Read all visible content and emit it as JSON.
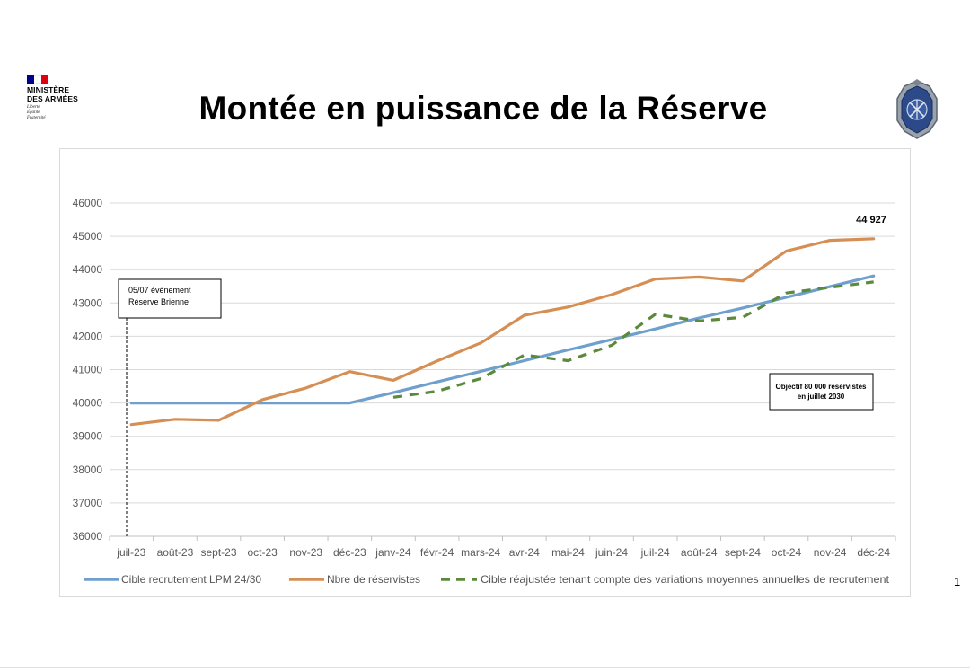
{
  "header": {
    "ministry_name_line1": "MINISTÈRE",
    "ministry_name_line2": "DES ARMÉES",
    "motto_line1": "Liberté",
    "motto_line2": "Égalité",
    "motto_line3": "Fraternité",
    "flag_colors": [
      "#000091",
      "#ffffff",
      "#e1000f"
    ],
    "title": "Montée en puissance de la Réserve",
    "emblem_icon": "reserve-crest-emblem-icon"
  },
  "page_number": "1",
  "chart_data": {
    "type": "line",
    "title": "",
    "xlabel": "",
    "ylabel": "",
    "categories": [
      "juil-23",
      "août-23",
      "sept-23",
      "oct-23",
      "nov-23",
      "déc-23",
      "janv-24",
      "févr-24",
      "mars-24",
      "avr-24",
      "mai-24",
      "juin-24",
      "juil-24",
      "août-24",
      "sept-24",
      "oct-24",
      "nov-24",
      "déc-24"
    ],
    "ylim": [
      36000,
      46000
    ],
    "yticks": [
      36000,
      37000,
      38000,
      39000,
      40000,
      41000,
      42000,
      43000,
      44000,
      45000,
      46000
    ],
    "grid": true,
    "legend_position": "bottom",
    "series": [
      {
        "name": "Cible recrutement LPM 24/30",
        "color": "#6f9fcc",
        "style": "solid",
        "values": [
          40000,
          40000,
          40000,
          40000,
          40000,
          40000,
          40310,
          40630,
          40950,
          41270,
          41590,
          41900,
          42220,
          42550,
          42850,
          43170,
          43490,
          43810
        ]
      },
      {
        "name": "Nbre de réservistes",
        "color": "#d58f55",
        "style": "solid",
        "values": [
          39350,
          39510,
          39480,
          40100,
          40450,
          40940,
          40680,
          41260,
          41800,
          42630,
          42880,
          43250,
          43720,
          43780,
          43660,
          44560,
          44880,
          44927
        ]
      },
      {
        "name": "Cible réajustée tenant compte des variations moyennes annuelles de recrutement",
        "color": "#5b8a3c",
        "style": "dashed",
        "values": [
          null,
          null,
          null,
          null,
          null,
          null,
          40170,
          40350,
          40730,
          41440,
          41270,
          41730,
          42660,
          42460,
          42570,
          43300,
          43470,
          43630
        ]
      }
    ],
    "annotations": {
      "event_line1": "05/07 événement",
      "event_line2": "Réserve Brienne",
      "objective_line1": "Objectif 80 000 réservistes",
      "objective_line2": "en juillet 2030",
      "last_value_label": "44 927"
    }
  }
}
